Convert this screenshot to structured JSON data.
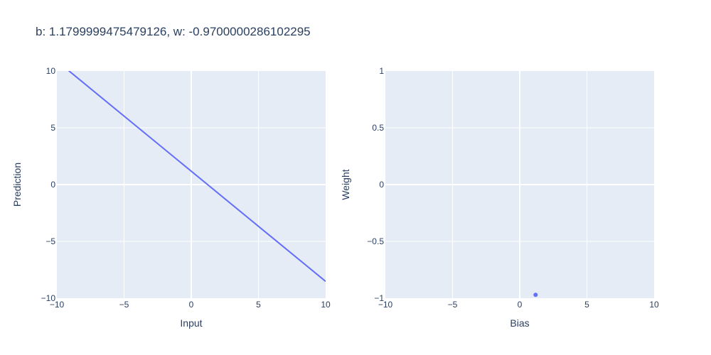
{
  "chart_data": {
    "title": "b: 1.1799999475479126, w: -0.9700000286102295",
    "colors": {
      "series": "#636efa",
      "plot_bg": "#e5ecf6",
      "text": "#2a3f5f",
      "grid": "#ffffff"
    },
    "grid": true,
    "subplots": [
      {
        "type": "line",
        "xlabel": "Input",
        "ylabel": "Prediction",
        "xlim": [
          -10,
          10
        ],
        "ylim": [
          -10,
          10
        ],
        "xticks": [
          -10,
          -5,
          0,
          5,
          10
        ],
        "yticks": [
          -10,
          -5,
          0,
          5,
          10
        ],
        "xtick_labels": [
          "−10",
          "−5",
          "0",
          "5",
          "10"
        ],
        "ytick_labels": [
          "−10",
          "−5",
          "0",
          "5",
          "10"
        ],
        "series": [
          {
            "x": [
              -10,
              10
            ],
            "y": [
              10.88,
              -8.52
            ]
          }
        ]
      },
      {
        "type": "scatter",
        "xlabel": "Bias",
        "ylabel": "Weight",
        "xlim": [
          -10,
          10
        ],
        "ylim": [
          -1,
          1
        ],
        "xticks": [
          -10,
          -5,
          0,
          5,
          10
        ],
        "yticks": [
          -1,
          -0.5,
          0,
          0.5,
          1
        ],
        "xtick_labels": [
          "−10",
          "−5",
          "0",
          "5",
          "10"
        ],
        "ytick_labels": [
          "−1",
          "−0.5",
          "0",
          "0.5",
          "1"
        ],
        "series": [
          {
            "x": [
              1.18
            ],
            "y": [
              -0.97
            ]
          }
        ]
      }
    ]
  }
}
